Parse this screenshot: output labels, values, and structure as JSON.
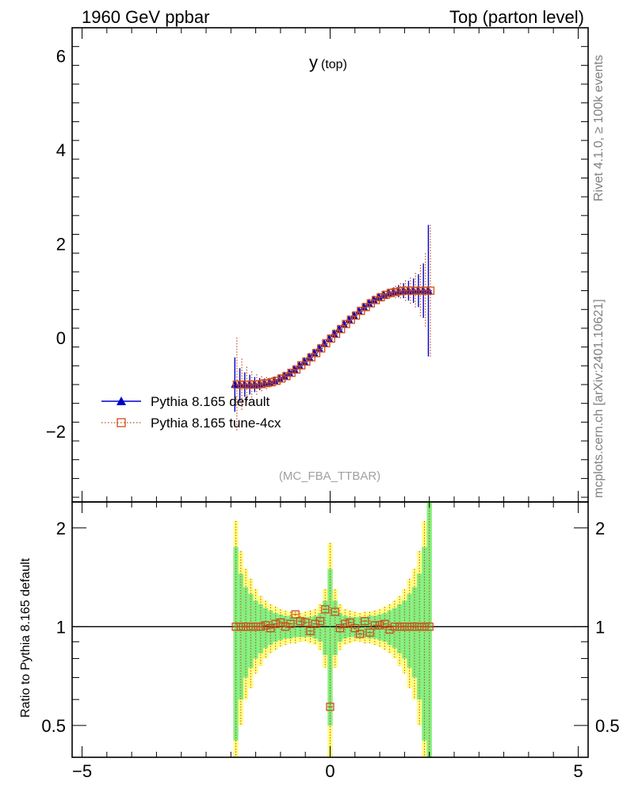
{
  "header": {
    "left": "1960 GeV ppbar",
    "right": "Top (parton level)"
  },
  "side_text": {
    "rivet": "Rivet 4.1.0, ≥ 100k events",
    "source": "mcplots.cern.ch [arXiv:2401.10621]"
  },
  "analysis": "(MC_FBA_TTBAR)",
  "colors": {
    "default": "#0000cc",
    "tune": "#cc4c1a",
    "band_outer": "#ffff80",
    "band_inner": "#80f080"
  },
  "chart_data": [
    {
      "type": "scatter",
      "title_main": "y",
      "title_sub": "(top)",
      "xlim": [
        -5.2,
        5.2
      ],
      "ylim": [
        -3.5,
        6.6
      ],
      "xticks": [
        "−5",
        "0",
        "5"
      ],
      "xtick_values": [
        -5,
        0,
        5
      ],
      "yticks": [
        "−2",
        "0",
        "2",
        "4",
        "6"
      ],
      "ytick_values": [
        -2,
        0,
        2,
        4,
        6
      ],
      "x": [
        -1.9,
        -1.8,
        -1.7,
        -1.6,
        -1.5,
        -1.4,
        -1.3,
        -1.2,
        -1.1,
        -1.0,
        -0.9,
        -0.8,
        -0.7,
        -0.6,
        -0.5,
        -0.4,
        -0.3,
        -0.2,
        -0.1,
        0.0,
        0.1,
        0.2,
        0.3,
        0.4,
        0.5,
        0.6,
        0.7,
        0.8,
        0.9,
        1.0,
        1.1,
        1.2,
        1.3,
        1.4,
        1.5,
        1.6,
        1.7,
        1.8,
        1.9,
        2.0
      ],
      "series": [
        {
          "name": "Pythia 8.165 default",
          "marker": "triangle",
          "values": [
            -1.0,
            -1.0,
            -1.0,
            -1.0,
            -1.0,
            -0.99,
            -0.97,
            -0.95,
            -0.92,
            -0.88,
            -0.82,
            -0.76,
            -0.68,
            -0.6,
            -0.51,
            -0.42,
            -0.33,
            -0.23,
            -0.13,
            -0.03,
            0.08,
            0.18,
            0.28,
            0.38,
            0.47,
            0.56,
            0.65,
            0.73,
            0.8,
            0.86,
            0.91,
            0.95,
            0.97,
            0.99,
            1.0,
            1.0,
            1.0,
            1.0,
            1.0,
            1.0
          ],
          "errors": [
            0.58,
            0.35,
            0.26,
            0.21,
            0.16,
            0.13,
            0.1,
            0.08,
            0.07,
            0.06,
            0.05,
            0.05,
            0.04,
            0.04,
            0.04,
            0.04,
            0.04,
            0.04,
            0.04,
            0.04,
            0.04,
            0.04,
            0.04,
            0.04,
            0.04,
            0.04,
            0.04,
            0.05,
            0.05,
            0.06,
            0.07,
            0.08,
            0.1,
            0.13,
            0.16,
            0.21,
            0.26,
            0.35,
            0.58,
            1.4
          ]
        },
        {
          "name": "Pythia 8.165 tune-4cx",
          "marker": "open-square",
          "values": [
            -1.0,
            -1.0,
            -1.0,
            -1.0,
            -1.0,
            -0.99,
            -0.97,
            -0.95,
            -0.92,
            -0.87,
            -0.82,
            -0.75,
            -0.68,
            -0.59,
            -0.51,
            -0.42,
            -0.33,
            -0.23,
            -0.12,
            -0.02,
            0.08,
            0.18,
            0.29,
            0.38,
            0.47,
            0.57,
            0.65,
            0.73,
            0.8,
            0.86,
            0.91,
            0.95,
            0.97,
            0.99,
            1.0,
            1.0,
            1.0,
            1.0,
            1.0,
            1.0
          ],
          "errors": [
            1.0,
            0.55,
            0.38,
            0.28,
            0.22,
            0.17,
            0.13,
            0.1,
            0.09,
            0.07,
            0.06,
            0.06,
            0.05,
            0.05,
            0.05,
            0.05,
            0.05,
            0.05,
            0.05,
            0.05,
            0.05,
            0.05,
            0.05,
            0.05,
            0.05,
            0.05,
            0.05,
            0.06,
            0.06,
            0.07,
            0.09,
            0.1,
            0.13,
            0.17,
            0.22,
            0.28,
            0.38,
            0.55,
            0.8,
            1.4
          ]
        }
      ],
      "legend_position": "lower-left"
    },
    {
      "type": "scatter",
      "ylabel": "Ratio to Pythia 8.165 default",
      "xlim": [
        -5.2,
        5.2
      ],
      "ylim": [
        0.4,
        2.4
      ],
      "yscale": "log",
      "xticks": [
        "−5",
        "0",
        "5"
      ],
      "xtick_values": [
        -5,
        0,
        5
      ],
      "yticks": [
        "0.5",
        "1",
        "2"
      ],
      "ytick_values": [
        0.5,
        1,
        2
      ],
      "x": [
        -1.9,
        -1.8,
        -1.7,
        -1.6,
        -1.5,
        -1.4,
        -1.3,
        -1.2,
        -1.1,
        -1.0,
        -0.9,
        -0.8,
        -0.7,
        -0.6,
        -0.5,
        -0.4,
        -0.3,
        -0.2,
        -0.1,
        0.0,
        0.1,
        0.2,
        0.3,
        0.4,
        0.5,
        0.6,
        0.7,
        0.8,
        0.9,
        1.0,
        1.1,
        1.2,
        1.3,
        1.4,
        1.5,
        1.6,
        1.7,
        1.8,
        1.9,
        2.0
      ],
      "band_outer": [
        [
          0.4,
          2.1
        ],
        [
          0.5,
          1.7
        ],
        [
          0.6,
          1.5
        ],
        [
          0.65,
          1.4
        ],
        [
          0.72,
          1.3
        ],
        [
          0.76,
          1.24
        ],
        [
          0.8,
          1.2
        ],
        [
          0.83,
          1.17
        ],
        [
          0.85,
          1.15
        ],
        [
          0.87,
          1.13
        ],
        [
          0.88,
          1.12
        ],
        [
          0.89,
          1.11
        ],
        [
          0.89,
          1.11
        ],
        [
          0.9,
          1.1
        ],
        [
          0.9,
          1.11
        ],
        [
          0.89,
          1.12
        ],
        [
          0.88,
          1.13
        ],
        [
          0.85,
          1.17
        ],
        [
          0.75,
          1.3
        ],
        [
          0.4,
          1.8
        ],
        [
          0.75,
          1.3
        ],
        [
          0.85,
          1.17
        ],
        [
          0.88,
          1.13
        ],
        [
          0.89,
          1.12
        ],
        [
          0.9,
          1.11
        ],
        [
          0.9,
          1.1
        ],
        [
          0.89,
          1.11
        ],
        [
          0.89,
          1.11
        ],
        [
          0.88,
          1.12
        ],
        [
          0.87,
          1.13
        ],
        [
          0.85,
          1.15
        ],
        [
          0.83,
          1.17
        ],
        [
          0.8,
          1.2
        ],
        [
          0.76,
          1.24
        ],
        [
          0.72,
          1.3
        ],
        [
          0.65,
          1.4
        ],
        [
          0.6,
          1.5
        ],
        [
          0.5,
          1.7
        ],
        [
          0.4,
          2.1
        ],
        [
          0.4,
          2.4
        ]
      ],
      "band_inner": [
        [
          0.45,
          1.75
        ],
        [
          0.6,
          1.45
        ],
        [
          0.7,
          1.32
        ],
        [
          0.75,
          1.26
        ],
        [
          0.8,
          1.2
        ],
        [
          0.83,
          1.17
        ],
        [
          0.86,
          1.14
        ],
        [
          0.88,
          1.12
        ],
        [
          0.9,
          1.1
        ],
        [
          0.91,
          1.09
        ],
        [
          0.92,
          1.08
        ],
        [
          0.92,
          1.08
        ],
        [
          0.93,
          1.07
        ],
        [
          0.93,
          1.07
        ],
        [
          0.93,
          1.07
        ],
        [
          0.93,
          1.07
        ],
        [
          0.92,
          1.08
        ],
        [
          0.9,
          1.1
        ],
        [
          0.82,
          1.2
        ],
        [
          0.5,
          1.5
        ],
        [
          0.82,
          1.2
        ],
        [
          0.9,
          1.1
        ],
        [
          0.92,
          1.08
        ],
        [
          0.93,
          1.07
        ],
        [
          0.93,
          1.07
        ],
        [
          0.93,
          1.07
        ],
        [
          0.93,
          1.07
        ],
        [
          0.92,
          1.08
        ],
        [
          0.92,
          1.08
        ],
        [
          0.91,
          1.09
        ],
        [
          0.9,
          1.1
        ],
        [
          0.88,
          1.12
        ],
        [
          0.86,
          1.14
        ],
        [
          0.83,
          1.17
        ],
        [
          0.8,
          1.2
        ],
        [
          0.75,
          1.26
        ],
        [
          0.7,
          1.32
        ],
        [
          0.6,
          1.45
        ],
        [
          0.45,
          1.75
        ],
        [
          0.4,
          2.4
        ]
      ],
      "ratio_values": [
        1.0,
        1.0,
        1.0,
        1.0,
        1.0,
        1.0,
        1.01,
        0.99,
        1.02,
        1.03,
        1.0,
        1.02,
        1.09,
        1.04,
        1.03,
        0.97,
        1.02,
        1.04,
        1.13,
        0.57,
        1.11,
        0.99,
        1.02,
        1.03,
        0.99,
        0.95,
        1.04,
        0.96,
        1.01,
        1.01,
        1.02,
        0.98,
        1.0,
        1.0,
        1.0,
        1.0,
        1.0,
        1.0,
        1.0,
        1.0
      ]
    }
  ]
}
